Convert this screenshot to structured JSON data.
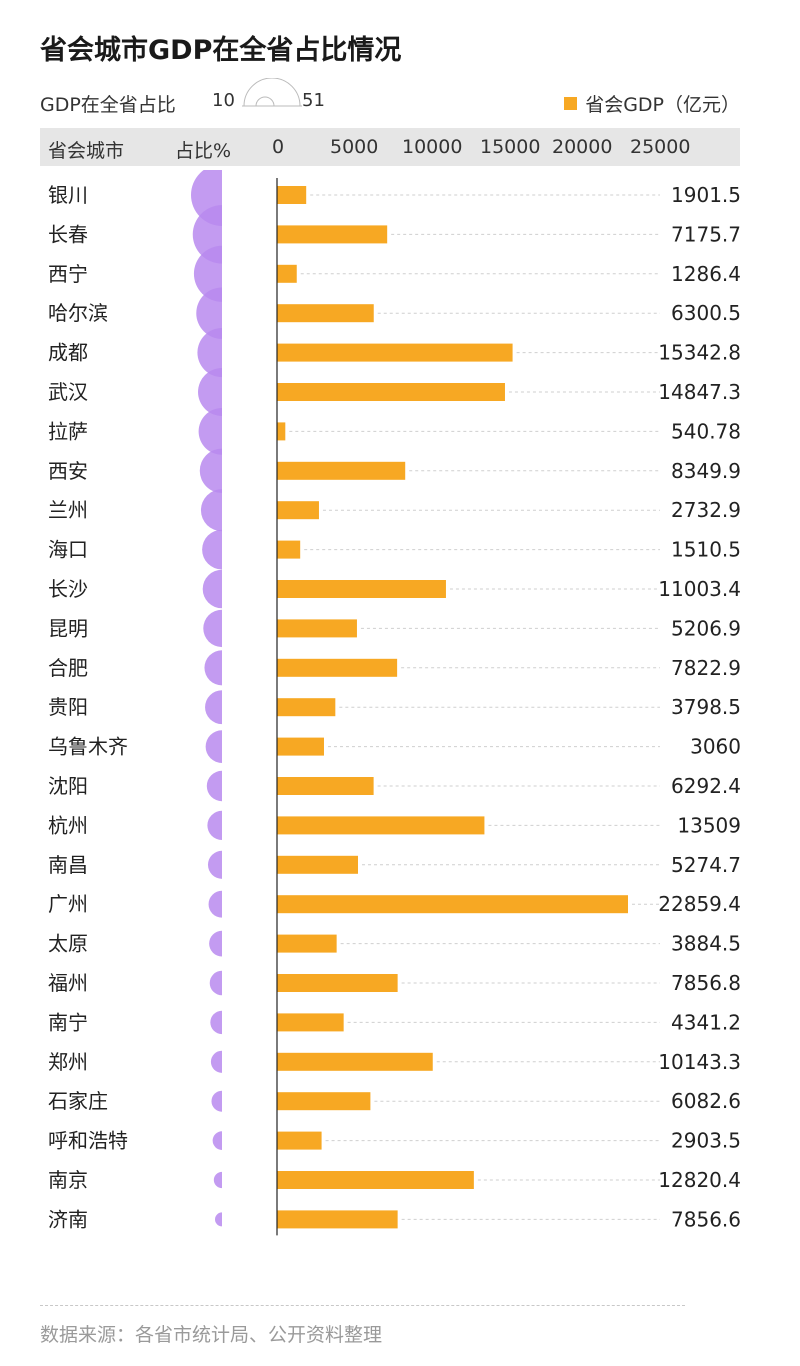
{
  "title": "省会城市GDP在全省占比情况",
  "legend": {
    "share_label": "GDP在全省占比",
    "size_min": "10",
    "size_max": "51",
    "gdp_label": "省会GDP（亿元）"
  },
  "header": {
    "city": "省会城市",
    "share": "占比%"
  },
  "colors": {
    "bar": "#F7A823",
    "bubble": "#B98AEE",
    "header_bg": "#E6E6E6"
  },
  "footer": "数据来源：各省市统计局、公开资料整理",
  "chart_data": {
    "type": "bar",
    "orientation": "horizontal",
    "x_ticks": [
      0,
      5000,
      10000,
      15000,
      20000,
      25000
    ],
    "xlim": [
      0,
      25000
    ],
    "grid": "dashed row guides",
    "categories": [
      "银川",
      "长春",
      "西宁",
      "哈尔滨",
      "成都",
      "武汉",
      "拉萨",
      "西安",
      "兰州",
      "海口",
      "长沙",
      "昆明",
      "合肥",
      "贵阳",
      "乌鲁木齐",
      "沈阳",
      "杭州",
      "南昌",
      "广州",
      "太原",
      "福州",
      "南宁",
      "郑州",
      "石家庄",
      "呼和浩特",
      "南京",
      "济南"
    ],
    "values": [
      1901.5,
      7175.7,
      1286.4,
      6300.5,
      15342.8,
      14847.3,
      540.78,
      8349.9,
      2732.9,
      1510.5,
      11003.4,
      5206.9,
      7822.9,
      3798.5,
      3060,
      6292.4,
      13509,
      5274.7,
      22859.4,
      3884.5,
      7856.8,
      4341.2,
      10143.3,
      6082.6,
      2903.5,
      12820.4,
      7856.6
    ],
    "value_labels": [
      "1901.5",
      "7175.7",
      "1286.4",
      "6300.5",
      "15342.8",
      "14847.3",
      "540.78",
      "8349.9",
      "2732.9",
      "1510.5",
      "11003.4",
      "5206.9",
      "7822.9",
      "3798.5",
      "3060",
      "6292.4",
      "13509",
      "5274.7",
      "22859.4",
      "3884.5",
      "7856.8",
      "4341.2",
      "10143.3",
      "6082.6",
      "2903.5",
      "12820.4",
      "7856.6"
    ],
    "share_percent_estimated": [
      51,
      48,
      46,
      42,
      40,
      39,
      38,
      36,
      34,
      32,
      31,
      30,
      28,
      27,
      26,
      24,
      23,
      22,
      21,
      20,
      19,
      18,
      17,
      16,
      14,
      12,
      10
    ]
  }
}
